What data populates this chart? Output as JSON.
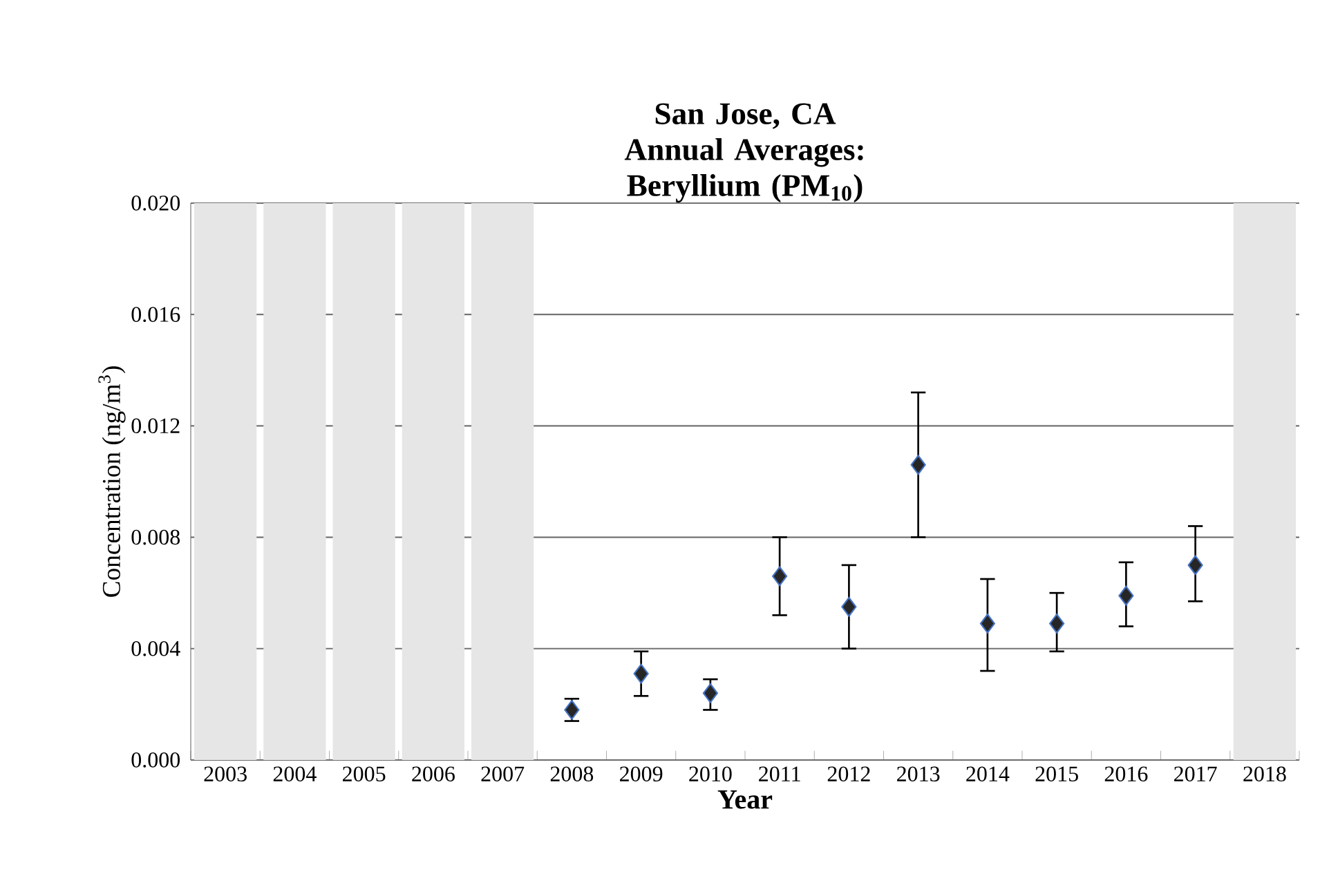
{
  "chart_data": {
    "type": "scatter",
    "title": "San Jose, CA Annual Averages: Beryllium (PM$_{10}$)",
    "xlabel": "Year",
    "ylabel": "Concentration (ng/m$^{3}$)",
    "x": [
      2008,
      2009,
      2010,
      2011,
      2012,
      2013,
      2014,
      2015,
      2016,
      2017
    ],
    "values": [
      0.0018,
      0.0031,
      0.0024,
      0.0066,
      0.0055,
      0.0106,
      0.0049,
      0.0049,
      0.0059,
      0.007
    ],
    "errors": [
      [
        0.0014,
        0.0022
      ],
      [
        0.0023,
        0.0039
      ],
      [
        0.0018,
        0.0029
      ],
      [
        0.0052,
        0.008
      ],
      [
        0.004,
        0.007
      ],
      [
        0.008,
        0.0132
      ],
      [
        0.0032,
        0.0065
      ],
      [
        0.0039,
        0.006
      ],
      [
        0.0048,
        0.0071
      ],
      [
        0.0057,
        0.0084
      ]
    ],
    "color": "#262626",
    "marker": "diamond",
    "xlim": [
      2002.5,
      2018.5
    ],
    "xticks": [
      2003,
      2004,
      2005,
      2006,
      2007,
      2008,
      2009,
      2010,
      2011,
      2012,
      2013,
      2014,
      2015,
      2016,
      2017,
      2018
    ],
    "ylim": [
      0,
      0.02
    ],
    "yticks": [
      {
        "value": 0,
        "label": "0.000"
      },
      {
        "value": 0.004,
        "label": "0.004"
      },
      {
        "value": 0.008,
        "label": "0.008"
      },
      {
        "value": 0.012,
        "label": "0.012"
      },
      {
        "value": 0.016,
        "label": "0.016"
      },
      {
        "value": 0.02,
        "label": "0.020"
      }
    ],
    "grid": "y",
    "bands": [
      {
        "axis": "x",
        "from": 2002.55,
        "to": 2003.45,
        "color": "#e6e6e6"
      },
      {
        "axis": "x",
        "from": 2003.55,
        "to": 2004.45,
        "color": "#e6e6e6"
      },
      {
        "axis": "x",
        "from": 2004.55,
        "to": 2005.45,
        "color": "#e6e6e6"
      },
      {
        "axis": "x",
        "from": 2005.55,
        "to": 2006.45,
        "color": "#e6e6e6"
      },
      {
        "axis": "x",
        "from": 2006.55,
        "to": 2007.45,
        "color": "#e6e6e6"
      },
      {
        "axis": "x",
        "from": 2017.55,
        "to": 2018.45,
        "color": "#e6e6e6"
      }
    ]
  }
}
